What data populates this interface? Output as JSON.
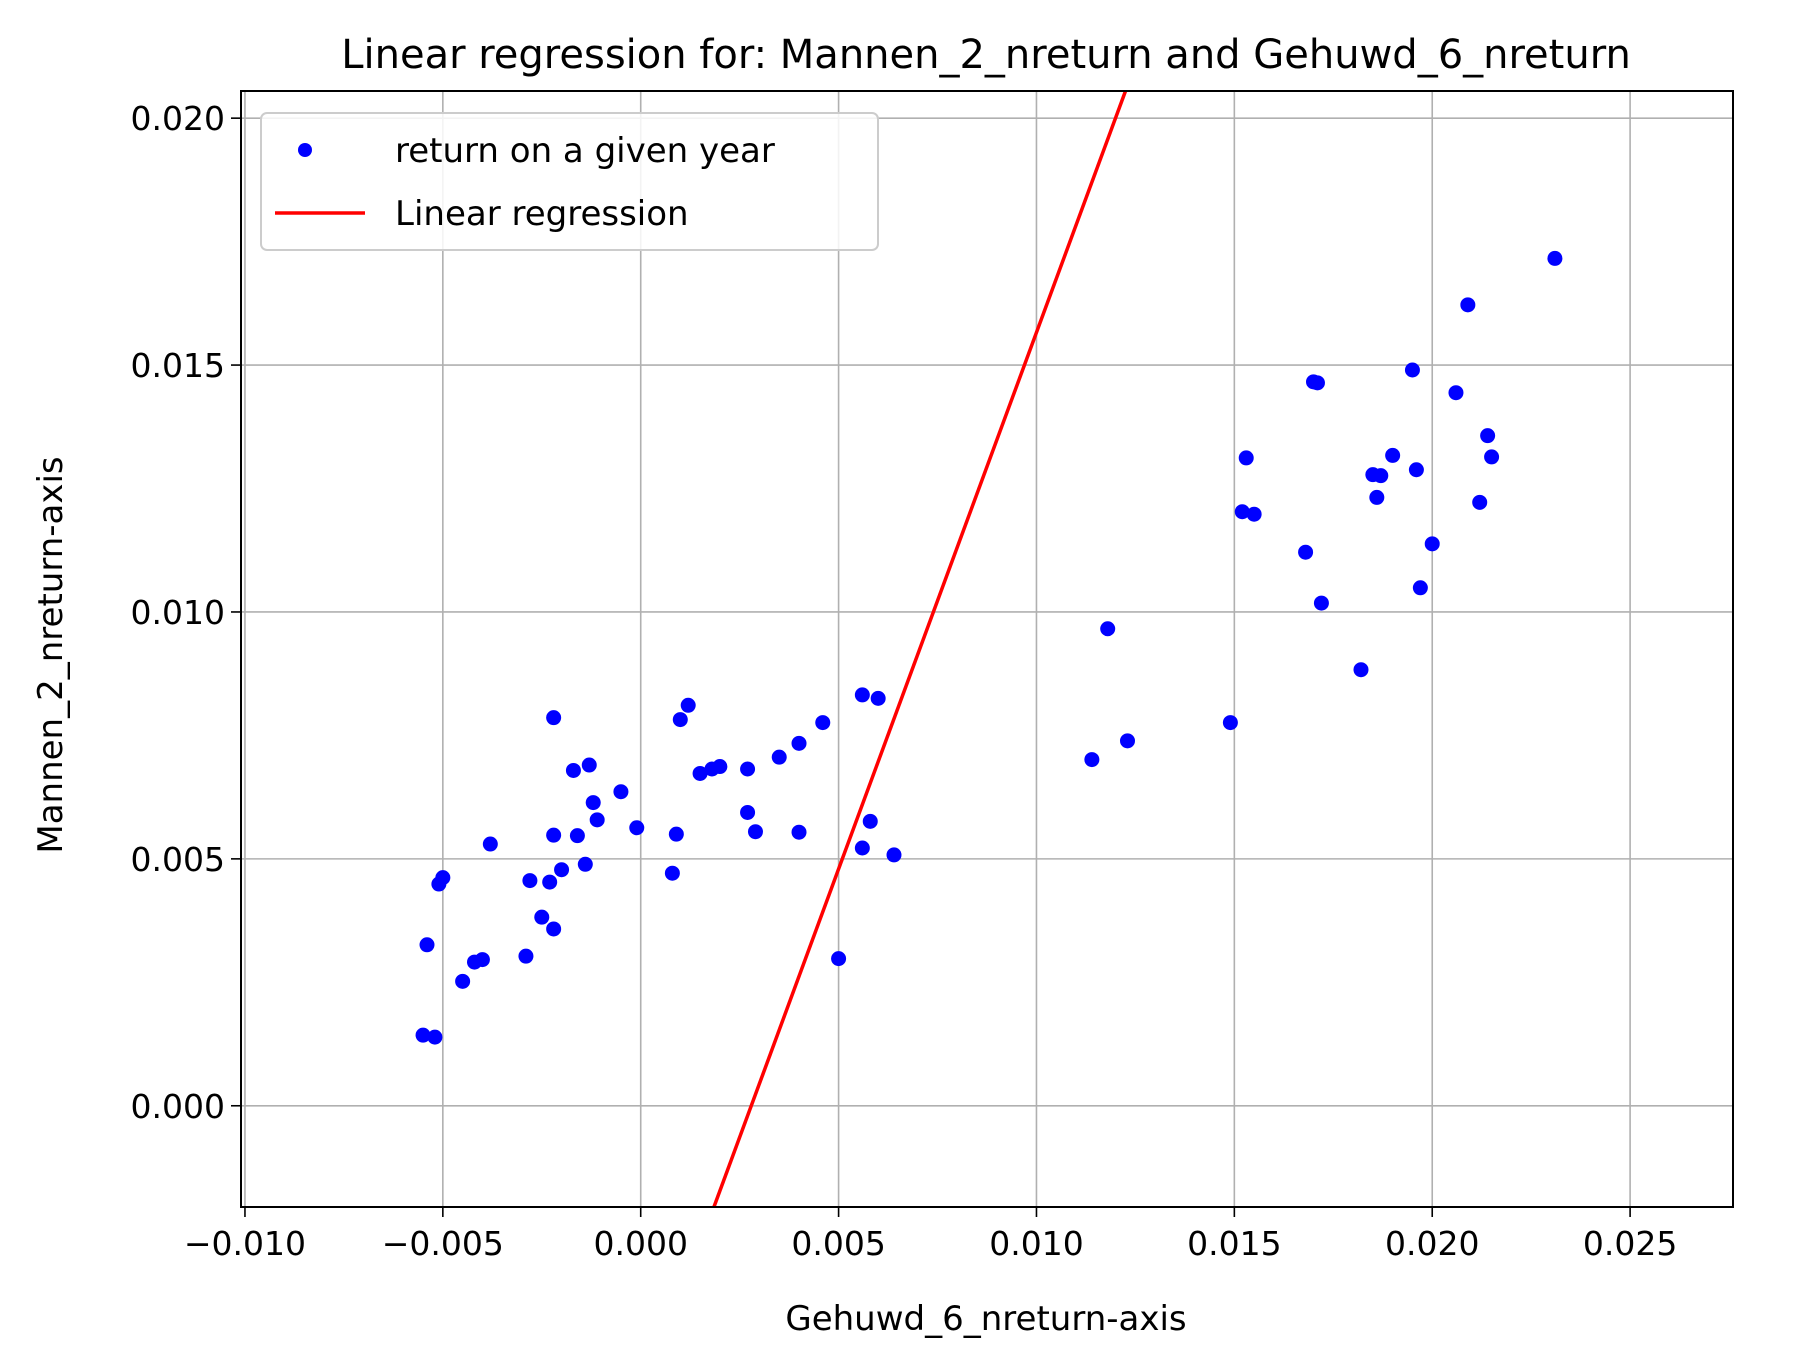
{
  "chart_data": {
    "type": "scatter",
    "title": "Linear regression for: Mannen_2_nreturn and Gehuwd_6_nreturn",
    "xlabel": "Gehuwd_6_nreturn-axis",
    "ylabel": "Mannen_2_nreturn-axis",
    "xlim": [
      -0.0101,
      0.0276
    ],
    "ylim": [
      -0.00205,
      0.02055
    ],
    "xticks": [
      "−0.010",
      "−0.005",
      "0.000",
      "0.005",
      "0.010",
      "0.015",
      "0.020",
      "0.025"
    ],
    "xtick_values": [
      -0.01,
      -0.005,
      0.0,
      0.005,
      0.01,
      0.015,
      0.02,
      0.025
    ],
    "yticks": [
      "0.000",
      "0.005",
      "0.010",
      "0.015",
      "0.020"
    ],
    "ytick_values": [
      0.0,
      0.005,
      0.01,
      0.015,
      0.02
    ],
    "grid": true,
    "legend_position": "top-left",
    "series": [
      {
        "name": "return on a given year",
        "kind": "scatter",
        "color": "#0000ff",
        "points": [
          [
            -0.0055,
            0.00143
          ],
          [
            -0.0052,
            0.00139
          ],
          [
            -0.0054,
            0.00326
          ],
          [
            -0.0051,
            0.00449
          ],
          [
            -0.005,
            0.00462
          ],
          [
            -0.0045,
            0.00252
          ],
          [
            -0.0042,
            0.00291
          ],
          [
            -0.004,
            0.00296
          ],
          [
            -0.0038,
            0.0053
          ],
          [
            -0.0029,
            0.00303
          ],
          [
            -0.0028,
            0.00456
          ],
          [
            -0.0025,
            0.00382
          ],
          [
            -0.0023,
            0.00453
          ],
          [
            -0.0022,
            0.00358
          ],
          [
            -0.0022,
            0.00548
          ],
          [
            -0.0022,
            0.00786
          ],
          [
            -0.002,
            0.00478
          ],
          [
            -0.0017,
            0.00679
          ],
          [
            -0.0016,
            0.00547
          ],
          [
            -0.0014,
            0.00489
          ],
          [
            -0.0013,
            0.0069
          ],
          [
            -0.0012,
            0.00614
          ],
          [
            -0.0011,
            0.00579
          ],
          [
            -0.0005,
            0.00636
          ],
          [
            -0.0001,
            0.00563
          ],
          [
            0.0008,
            0.00471
          ],
          [
            0.0009,
            0.0055
          ],
          [
            0.001,
            0.00782
          ],
          [
            0.0012,
            0.00811
          ],
          [
            0.0015,
            0.00673
          ],
          [
            0.0018,
            0.00682
          ],
          [
            0.002,
            0.00687
          ],
          [
            0.0027,
            0.00594
          ],
          [
            0.0027,
            0.00682
          ],
          [
            0.0029,
            0.00555
          ],
          [
            0.0035,
            0.00706
          ],
          [
            0.004,
            0.00734
          ],
          [
            0.004,
            0.00554
          ],
          [
            0.0046,
            0.00776
          ],
          [
            0.005,
            0.00298
          ],
          [
            0.0056,
            0.00522
          ],
          [
            0.0056,
            0.00832
          ],
          [
            0.0058,
            0.00576
          ],
          [
            0.006,
            0.00825
          ],
          [
            0.0064,
            0.00508
          ],
          [
            0.0114,
            0.00701
          ],
          [
            0.0118,
            0.00966
          ],
          [
            0.0123,
            0.00739
          ],
          [
            0.0149,
            0.00776
          ],
          [
            0.0152,
            0.01203
          ],
          [
            0.0153,
            0.01312
          ],
          [
            0.0155,
            0.01198
          ],
          [
            0.0168,
            0.01121
          ],
          [
            0.017,
            0.01466
          ],
          [
            0.0171,
            0.01464
          ],
          [
            0.0172,
            0.01018
          ],
          [
            0.0182,
            0.00883
          ],
          [
            0.0185,
            0.01278
          ],
          [
            0.0186,
            0.01232
          ],
          [
            0.0187,
            0.01276
          ],
          [
            0.019,
            0.01317
          ],
          [
            0.0195,
            0.0149
          ],
          [
            0.0196,
            0.01288
          ],
          [
            0.0197,
            0.01049
          ],
          [
            0.02,
            0.01138
          ],
          [
            0.0206,
            0.01444
          ],
          [
            0.0209,
            0.01622
          ],
          [
            0.0212,
            0.01222
          ],
          [
            0.0214,
            0.01357
          ],
          [
            0.0215,
            0.01314
          ],
          [
            0.0231,
            0.01716
          ]
        ]
      },
      {
        "name": "Linear regression",
        "kind": "line",
        "color": "#ff0000",
        "points": [
          [
            0.00185,
            -0.00205
          ],
          [
            0.01225,
            0.02055
          ]
        ]
      }
    ]
  }
}
